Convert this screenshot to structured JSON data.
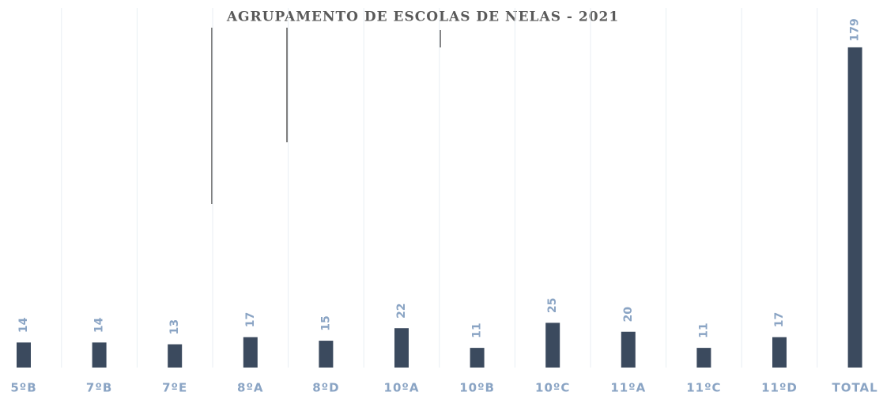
{
  "chart_data": {
    "type": "bar",
    "subtitle": "AGRUPAMENTO DE ESCOLAS DE NELAS - 2021",
    "categories": [
      "5ºB",
      "7ºB",
      "7ºE",
      "8ºA",
      "8ºD",
      "10ºA",
      "10ºB",
      "10ºC",
      "11ºA",
      "11ºC",
      "11ºD",
      "TOTAL"
    ],
    "values": [
      14,
      14,
      13,
      17,
      15,
      22,
      11,
      25,
      20,
      11,
      17,
      179
    ],
    "color": "#3b4a5e",
    "ylim": [
      0,
      190
    ]
  }
}
